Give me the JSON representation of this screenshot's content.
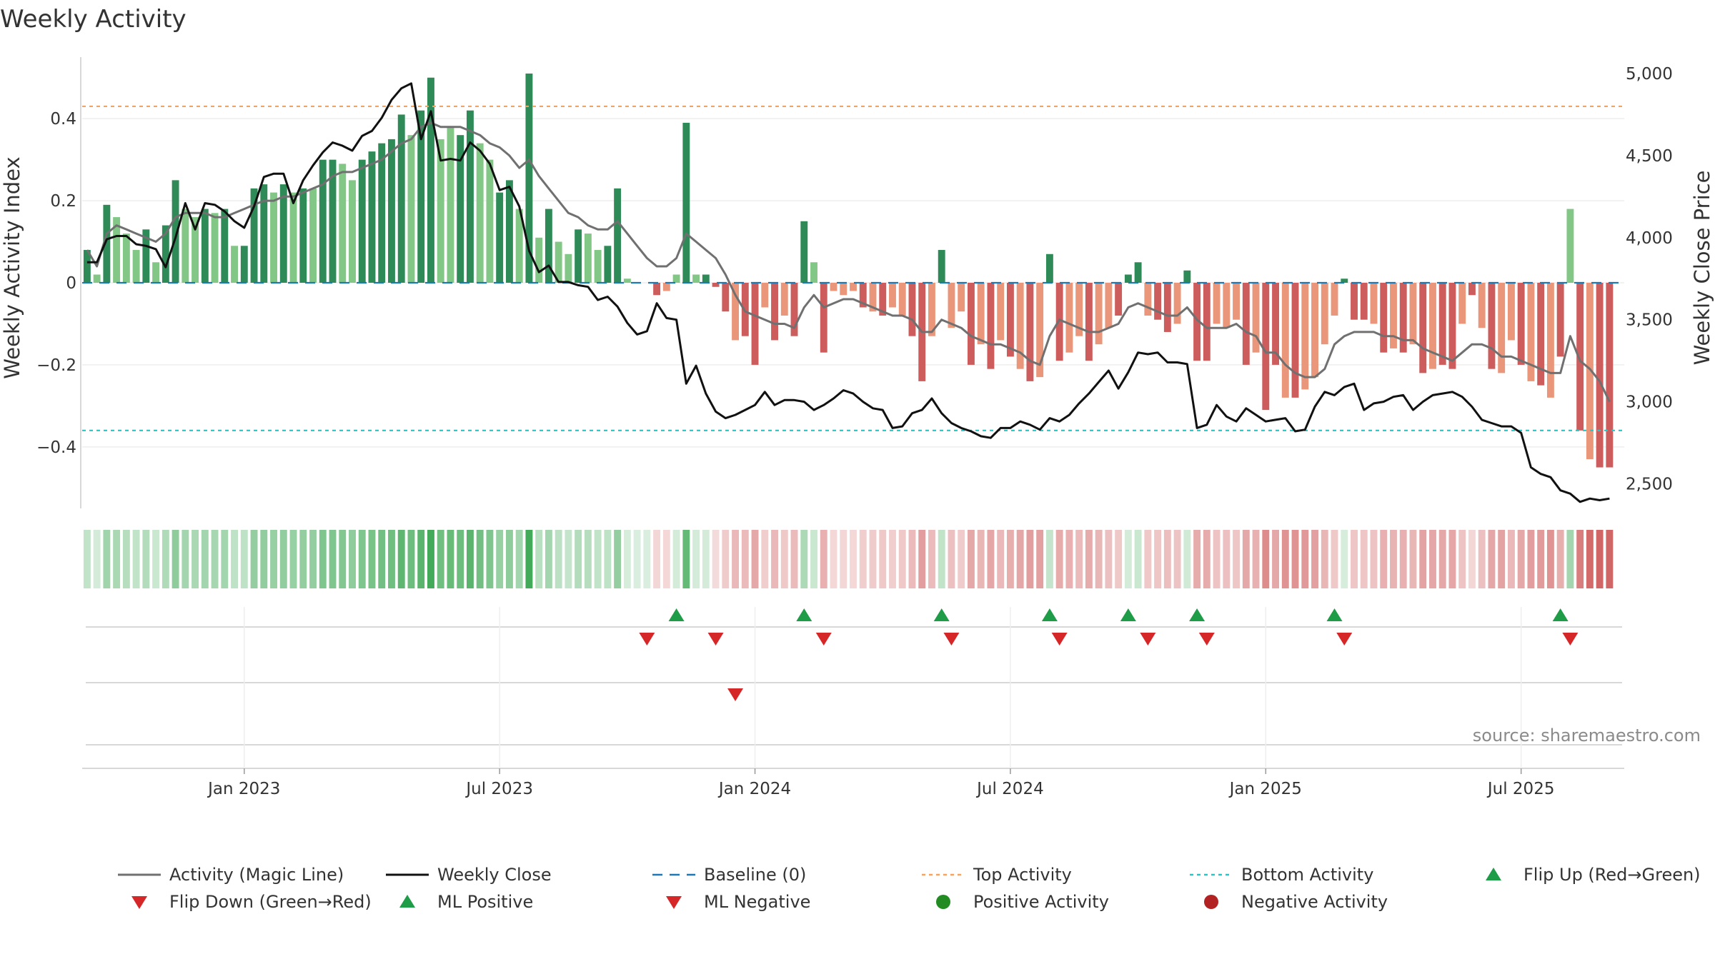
{
  "chart_data": {
    "type": "bar",
    "title": "Weekly Activity",
    "ylabel_left": "Weekly Activity Index",
    "ylabel_right": "Weekly Close Price",
    "source": "source: sharemaestro.com",
    "ylim_left": [
      -0.55,
      0.55
    ],
    "ylim_right": [
      2350,
      5100
    ],
    "yticks_left": [
      {
        "value": 0.4,
        "label": "0.4"
      },
      {
        "value": 0.2,
        "label": "0.2"
      },
      {
        "value": 0,
        "label": "0"
      },
      {
        "value": -0.2,
        "label": "−0.2"
      },
      {
        "value": -0.4,
        "label": "−0.4"
      }
    ],
    "yticks_right": [
      {
        "value": 5000,
        "label": "5,000"
      },
      {
        "value": 4500,
        "label": "4,500"
      },
      {
        "value": 4000,
        "label": "4,000"
      },
      {
        "value": 3500,
        "label": "3,500"
      },
      {
        "value": 3000,
        "label": "3,000"
      },
      {
        "value": 2500,
        "label": "2,500"
      }
    ],
    "xticks": [
      {
        "week": 16,
        "label": "Jan 2023"
      },
      {
        "week": 42,
        "label": "Jul 2023"
      },
      {
        "week": 68,
        "label": "Jan 2024"
      },
      {
        "week": 94,
        "label": "Jul 2024"
      },
      {
        "week": 120,
        "label": "Jan 2025"
      },
      {
        "week": 146,
        "label": "Jul 2025"
      }
    ],
    "n_weeks": 157,
    "top_activity": 0.43,
    "bottom_activity": -0.36,
    "colors": {
      "pos_strong": "#2e8b57",
      "pos_light": "#82c785",
      "neg_strong": "#cd5c5c",
      "neg_light": "#e9967a",
      "magic_line": "#707070",
      "close_line": "#111111",
      "baseline": "#1f77b4",
      "top_line": "#f4a460",
      "bottom_line": "#22c8c8",
      "flip_up": "#1e9c48",
      "flip_down": "#d62728",
      "positive_dot": "#228b22",
      "negative_dot": "#b22222",
      "grid": "#dddddd"
    },
    "activity": [
      0.08,
      0.02,
      0.19,
      0.16,
      0.12,
      0.08,
      0.13,
      0.05,
      0.14,
      0.25,
      0.18,
      0.16,
      0.18,
      0.17,
      0.18,
      0.09,
      0.09,
      0.23,
      0.24,
      0.22,
      0.24,
      0.22,
      0.23,
      0.23,
      0.3,
      0.3,
      0.29,
      0.25,
      0.3,
      0.32,
      0.34,
      0.35,
      0.41,
      0.36,
      0.42,
      0.5,
      0.35,
      0.38,
      0.36,
      0.42,
      0.34,
      0.3,
      0.22,
      0.25,
      0.18,
      0.51,
      0.11,
      0.18,
      0.1,
      0.07,
      0.13,
      0.12,
      0.08,
      0.09,
      0.23,
      0.01,
      0,
      0,
      -0.03,
      -0.02,
      0.02,
      0.39,
      0.02,
      0.02,
      -0.01,
      -0.07,
      -0.14,
      -0.13,
      -0.2,
      -0.06,
      -0.14,
      -0.08,
      -0.13,
      0.15,
      0.05,
      -0.17,
      -0.02,
      -0.03,
      -0.02,
      -0.06,
      -0.07,
      -0.08,
      -0.06,
      -0.08,
      -0.13,
      -0.24,
      -0.13,
      0.08,
      -0.11,
      -0.07,
      -0.2,
      -0.15,
      -0.21,
      -0.14,
      -0.18,
      -0.21,
      -0.24,
      -0.23,
      0.07,
      -0.19,
      -0.17,
      -0.13,
      -0.19,
      -0.15,
      -0.11,
      -0.08,
      0.02,
      0.05,
      -0.08,
      -0.09,
      -0.12,
      -0.1,
      0.03,
      -0.19,
      -0.19,
      -0.1,
      -0.11,
      -0.09,
      -0.2,
      -0.17,
      -0.31,
      -0.2,
      -0.28,
      -0.28,
      -0.26,
      -0.23,
      -0.15,
      -0.08,
      0.01,
      -0.09,
      -0.09,
      -0.1,
      -0.17,
      -0.16,
      -0.17,
      -0.15,
      -0.22,
      -0.21,
      -0.2,
      -0.21,
      -0.1,
      -0.03,
      -0.11,
      -0.21,
      -0.22,
      -0.14,
      -0.2,
      -0.24,
      -0.25,
      -0.28,
      -0.18,
      0.18,
      -0.36,
      -0.43,
      -0.45,
      -0.45
    ],
    "magic_line": [
      0.08,
      0.04,
      0.12,
      0.14,
      0.13,
      0.12,
      0.11,
      0.1,
      0.12,
      0.16,
      0.17,
      0.17,
      0.17,
      0.16,
      0.16,
      0.17,
      0.18,
      0.19,
      0.2,
      0.2,
      0.21,
      0.21,
      0.22,
      0.23,
      0.24,
      0.26,
      0.27,
      0.27,
      0.28,
      0.29,
      0.3,
      0.32,
      0.34,
      0.35,
      0.38,
      0.39,
      0.38,
      0.38,
      0.38,
      0.37,
      0.36,
      0.34,
      0.33,
      0.31,
      0.28,
      0.3,
      0.26,
      0.23,
      0.2,
      0.17,
      0.16,
      0.14,
      0.13,
      0.13,
      0.15,
      0.12,
      0.09,
      0.06,
      0.04,
      0.04,
      0.06,
      0.12,
      0.1,
      0.08,
      0.06,
      0.02,
      -0.03,
      -0.07,
      -0.08,
      -0.09,
      -0.1,
      -0.1,
      -0.11,
      -0.06,
      -0.03,
      -0.06,
      -0.05,
      -0.04,
      -0.04,
      -0.05,
      -0.06,
      -0.07,
      -0.08,
      -0.08,
      -0.09,
      -0.12,
      -0.12,
      -0.09,
      -0.1,
      -0.11,
      -0.13,
      -0.14,
      -0.15,
      -0.15,
      -0.16,
      -0.17,
      -0.19,
      -0.2,
      -0.13,
      -0.09,
      -0.1,
      -0.11,
      -0.12,
      -0.12,
      -0.11,
      -0.1,
      -0.06,
      -0.05,
      -0.06,
      -0.07,
      -0.08,
      -0.08,
      -0.06,
      -0.09,
      -0.11,
      -0.11,
      -0.11,
      -0.1,
      -0.12,
      -0.13,
      -0.17,
      -0.17,
      -0.2,
      -0.22,
      -0.23,
      -0.23,
      -0.21,
      -0.15,
      -0.13,
      -0.12,
      -0.12,
      -0.12,
      -0.13,
      -0.13,
      -0.14,
      -0.14,
      -0.16,
      -0.17,
      -0.18,
      -0.19,
      -0.17,
      -0.15,
      -0.15,
      -0.16,
      -0.18,
      -0.18,
      -0.19,
      -0.2,
      -0.21,
      -0.22,
      -0.22,
      -0.13,
      -0.19,
      -0.21,
      -0.24,
      -0.29
    ],
    "weekly_close": [
      3850,
      3850,
      3990,
      4010,
      4010,
      3960,
      3950,
      3930,
      3820,
      4000,
      4210,
      4050,
      4210,
      4200,
      4160,
      4100,
      4060,
      4190,
      4370,
      4390,
      4390,
      4210,
      4350,
      4440,
      4520,
      4580,
      4560,
      4530,
      4620,
      4650,
      4730,
      4840,
      4910,
      4940,
      4600,
      4770,
      4470,
      4480,
      4470,
      4580,
      4530,
      4450,
      4290,
      4310,
      4190,
      3920,
      3790,
      3830,
      3730,
      3730,
      3710,
      3700,
      3620,
      3640,
      3580,
      3480,
      3410,
      3430,
      3600,
      3510,
      3500,
      3110,
      3220,
      3050,
      2940,
      2900,
      2920,
      2950,
      2980,
      3060,
      2980,
      3010,
      3010,
      3000,
      2950,
      2980,
      3020,
      3070,
      3050,
      3000,
      2960,
      2950,
      2840,
      2850,
      2930,
      2950,
      3020,
      2930,
      2870,
      2840,
      2820,
      2790,
      2780,
      2840,
      2840,
      2880,
      2860,
      2830,
      2900,
      2880,
      2920,
      2990,
      3050,
      3120,
      3190,
      3080,
      3180,
      3300,
      3290,
      3300,
      3240,
      3240,
      3230,
      2840,
      2860,
      2980,
      2910,
      2880,
      2960,
      2920,
      2880,
      2890,
      2900,
      2820,
      2830,
      2970,
      3060,
      3040,
      3090,
      3110,
      2950,
      2990,
      3000,
      3030,
      3040,
      2950,
      3000,
      3040,
      3050,
      3060,
      3030,
      2970,
      2890,
      2870,
      2850,
      2850,
      2810,
      2600,
      2560,
      2540,
      2460,
      2440,
      2390,
      2410,
      2400,
      2410
    ],
    "light_mask": [
      0,
      1,
      0,
      1,
      1,
      1,
      0,
      1,
      0,
      0,
      1,
      1,
      0,
      1,
      0,
      1,
      0,
      0,
      0,
      1,
      0,
      1,
      0,
      1,
      0,
      0,
      1,
      1,
      0,
      0,
      0,
      0,
      0,
      1,
      0,
      0,
      1,
      1,
      0,
      0,
      1,
      1,
      0,
      0,
      1,
      0,
      1,
      0,
      1,
      1,
      0,
      1,
      1,
      0,
      0,
      1,
      0,
      0,
      0,
      1,
      1,
      0,
      1,
      0,
      0,
      0,
      1,
      0,
      0,
      1,
      0,
      1,
      0,
      0,
      1,
      0,
      1,
      1,
      1,
      0,
      1,
      0,
      1,
      1,
      0,
      0,
      1,
      0,
      1,
      1,
      0,
      1,
      0,
      1,
      0,
      1,
      0,
      1,
      0,
      0,
      1,
      1,
      0,
      1,
      1,
      0,
      0,
      0,
      1,
      0,
      0,
      1,
      0,
      0,
      0,
      1,
      1,
      1,
      0,
      1,
      0,
      0,
      1,
      0,
      1,
      1,
      1,
      1,
      0,
      0,
      0,
      1,
      0,
      1,
      0,
      1,
      0,
      1,
      0,
      0,
      1,
      0,
      1,
      0,
      1,
      1,
      0,
      1,
      0,
      1,
      0,
      1,
      0,
      1,
      0,
      0,
      1
    ],
    "flip_up_weeks": [
      60,
      73,
      87,
      98,
      106,
      113,
      127,
      150
    ],
    "flip_down_weeks": [
      57,
      64,
      75,
      88,
      99,
      108,
      114,
      128,
      151
    ],
    "ml_negative_weeks": [
      66
    ],
    "legend": [
      {
        "label": "Activity (Magic Line)",
        "kind": "line-gray"
      },
      {
        "label": "Weekly Close",
        "kind": "line-black"
      },
      {
        "label": "Baseline (0)",
        "kind": "dash-blue"
      },
      {
        "label": "Top Activity",
        "kind": "dot-orange"
      },
      {
        "label": "Bottom Activity",
        "kind": "dot-cyan"
      },
      {
        "label": "Flip Up (Red→Green)",
        "kind": "tri-up"
      },
      {
        "label": "Flip Down (Green→Red)",
        "kind": "tri-down"
      },
      {
        "label": "ML Positive",
        "kind": "tri-up"
      },
      {
        "label": "ML Negative",
        "kind": "tri-down"
      },
      {
        "label": "Positive Activity",
        "kind": "dot-green"
      },
      {
        "label": "Negative Activity",
        "kind": "dot-red"
      }
    ]
  }
}
